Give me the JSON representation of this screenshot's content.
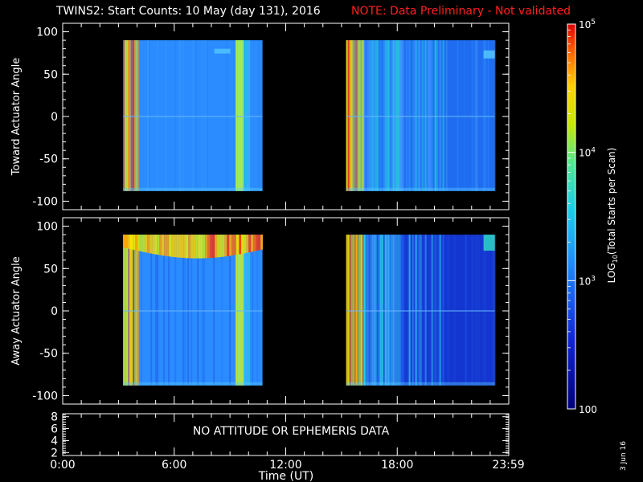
{
  "header": {
    "title": "TWINS2: Start Counts: 10 May (day 131), 2016",
    "note": "NOTE: Data Preliminary - Not validated"
  },
  "footer": {
    "date_stamp": "3 Jun 16"
  },
  "chart_data": [
    {
      "id": "toward",
      "type": "heatmap",
      "ylabel": "Toward Actuator Angle",
      "ylim": [
        -110,
        110
      ],
      "yticks": [
        100,
        50,
        0,
        -50,
        -100
      ],
      "xlim": [
        0,
        24
      ],
      "angle_range": [
        -88,
        90
      ],
      "data_intervals_hours": [
        [
          3.25,
          10.75
        ],
        [
          15.25,
          23.25
        ]
      ],
      "colors": {
        "base_left": "#2a8cff",
        "base_right": "#1f6cf0",
        "high": "#ff2000",
        "mid": "#c8e000"
      }
    },
    {
      "id": "away",
      "type": "heatmap",
      "ylabel": "Away Actuator Angle",
      "ylim": [
        -110,
        110
      ],
      "yticks": [
        100,
        50,
        0,
        -50,
        -100
      ],
      "xlim": [
        0,
        24
      ],
      "angle_range": [
        -88,
        90
      ],
      "data_intervals_hours": [
        [
          3.25,
          10.75
        ],
        [
          15.25,
          23.25
        ]
      ],
      "colors": {
        "base_left": "#2a8cff",
        "base_right": "#1436d0",
        "high": "#ff2000",
        "mid": "#c8e000"
      }
    },
    {
      "id": "ephemeris",
      "type": "line",
      "ylim": [
        1.5,
        8.5
      ],
      "yticks": [
        8,
        6,
        4,
        2
      ],
      "xlabel": "Time (UT)",
      "xtick_labels": [
        "0:00",
        "6:00",
        "12:00",
        "18:00",
        "23:59"
      ],
      "xtick_hours": [
        0,
        6,
        12,
        18,
        23.98
      ],
      "annotation": "NO ATTITUDE OR EPHEMERIS DATA"
    }
  ],
  "colorbar": {
    "label": "LOG10(Total Starts per Scan)",
    "label_prefix": "LOG",
    "label_sub": "10",
    "label_suffix": "(Total Starts per Scan)",
    "tick_labels": [
      {
        "value": 100000,
        "base": "10",
        "exp": "5"
      },
      {
        "value": 10000,
        "base": "10",
        "exp": "4"
      },
      {
        "value": 1000,
        "base": "10",
        "exp": "3"
      },
      {
        "value": 100,
        "base": "100",
        "exp": ""
      }
    ],
    "range": [
      100,
      100000
    ],
    "scale": "log"
  }
}
